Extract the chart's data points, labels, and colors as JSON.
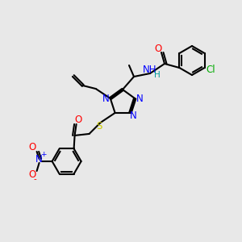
{
  "bg_color": "#e8e8e8",
  "bond_color": "#000000",
  "bond_width": 1.5,
  "atom_colors": {
    "N": "#0000ff",
    "O": "#ff0000",
    "S": "#cccc00",
    "Cl": "#00aa00",
    "H": "#009999",
    "C": "#000000"
  },
  "font_size": 8.5,
  "figsize": [
    3.0,
    3.0
  ],
  "dpi": 100
}
